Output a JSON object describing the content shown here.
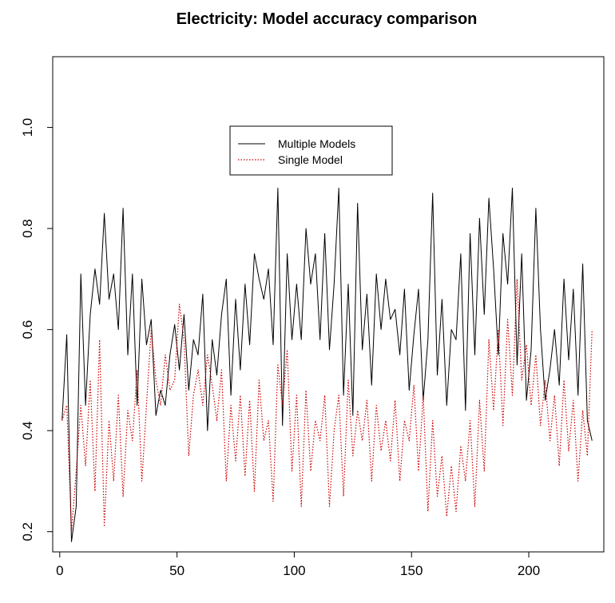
{
  "chart_data": {
    "type": "line",
    "title": "Electricity: Model accuracy comparison",
    "xlabel": "",
    "ylabel": "",
    "xlim": [
      -3,
      232
    ],
    "ylim": [
      0.16,
      1.14
    ],
    "x_ticks": [
      0,
      50,
      100,
      150,
      200
    ],
    "y_ticks": [
      0.2,
      0.4,
      0.6,
      0.8,
      1.0
    ],
    "y_tick_labels": [
      "0.2",
      "0.4",
      "0.6",
      "0.8",
      "1.0"
    ],
    "grid": false,
    "legend": {
      "position": "top-center"
    },
    "series": [
      {
        "name": "Multiple Models",
        "color": "#000000",
        "style": "solid",
        "x": [
          1,
          3,
          5,
          7,
          9,
          11,
          13,
          15,
          17,
          19,
          21,
          23,
          25,
          27,
          29,
          31,
          33,
          35,
          37,
          39,
          41,
          43,
          45,
          47,
          49,
          51,
          53,
          55,
          57,
          59,
          61,
          63,
          65,
          67,
          69,
          71,
          73,
          75,
          77,
          79,
          81,
          83,
          85,
          87,
          89,
          91,
          93,
          95,
          97,
          99,
          101,
          103,
          105,
          107,
          109,
          111,
          113,
          115,
          117,
          119,
          121,
          123,
          125,
          127,
          129,
          131,
          133,
          135,
          137,
          139,
          141,
          143,
          145,
          147,
          149,
          151,
          153,
          155,
          157,
          159,
          161,
          163,
          165,
          167,
          169,
          171,
          173,
          175,
          177,
          179,
          181,
          183,
          185,
          187,
          189,
          191,
          193,
          195,
          197,
          199,
          201,
          203,
          205,
          207,
          209,
          211,
          213,
          215,
          217,
          219,
          221,
          223,
          225,
          227
        ],
        "values": [
          0.42,
          0.59,
          0.18,
          0.25,
          0.71,
          0.45,
          0.63,
          0.72,
          0.65,
          0.83,
          0.66,
          0.71,
          0.6,
          0.84,
          0.55,
          0.71,
          0.45,
          0.7,
          0.57,
          0.62,
          0.43,
          0.48,
          0.45,
          0.55,
          0.61,
          0.52,
          0.63,
          0.48,
          0.58,
          0.55,
          0.67,
          0.4,
          0.58,
          0.51,
          0.63,
          0.7,
          0.47,
          0.66,
          0.52,
          0.69,
          0.57,
          0.75,
          0.7,
          0.66,
          0.72,
          0.57,
          0.88,
          0.41,
          0.75,
          0.58,
          0.69,
          0.58,
          0.8,
          0.69,
          0.75,
          0.58,
          0.79,
          0.56,
          0.69,
          0.88,
          0.47,
          0.69,
          0.43,
          0.85,
          0.56,
          0.67,
          0.49,
          0.71,
          0.6,
          0.7,
          0.62,
          0.64,
          0.55,
          0.68,
          0.48,
          0.59,
          0.68,
          0.46,
          0.58,
          0.87,
          0.51,
          0.66,
          0.45,
          0.6,
          0.58,
          0.75,
          0.44,
          0.79,
          0.55,
          0.82,
          0.63,
          0.86,
          0.72,
          0.55,
          0.79,
          0.69,
          0.88,
          0.53,
          0.75,
          0.46,
          0.56,
          0.84,
          0.6,
          0.46,
          0.52,
          0.6,
          0.49,
          0.7,
          0.54,
          0.68,
          0.47,
          0.73,
          0.42,
          0.38
        ],
        "note_values_ok": true
      },
      {
        "name": "Single Model",
        "color": "#cc0000",
        "style": "dotted",
        "x": [
          1,
          3,
          5,
          7,
          9,
          11,
          13,
          15,
          17,
          19,
          21,
          23,
          25,
          27,
          29,
          31,
          33,
          35,
          37,
          39,
          41,
          43,
          45,
          47,
          49,
          51,
          53,
          55,
          57,
          59,
          61,
          63,
          65,
          67,
          69,
          71,
          73,
          75,
          77,
          79,
          81,
          83,
          85,
          87,
          89,
          91,
          93,
          95,
          97,
          99,
          101,
          103,
          105,
          107,
          109,
          111,
          113,
          115,
          117,
          119,
          121,
          123,
          125,
          127,
          129,
          131,
          133,
          135,
          137,
          139,
          141,
          143,
          145,
          147,
          149,
          151,
          153,
          155,
          157,
          159,
          161,
          163,
          165,
          167,
          169,
          171,
          173,
          175,
          177,
          179,
          181,
          183,
          185,
          187,
          189,
          191,
          193,
          195,
          197,
          199,
          201,
          203,
          205,
          207,
          209,
          211,
          213,
          215,
          217,
          219,
          221,
          223,
          225,
          227
        ],
        "values": [
          0.42,
          0.45,
          0.2,
          0.32,
          0.45,
          0.33,
          0.5,
          0.28,
          0.58,
          0.21,
          0.42,
          0.3,
          0.47,
          0.27,
          0.44,
          0.38,
          0.52,
          0.3,
          0.45,
          0.6,
          0.5,
          0.45,
          0.55,
          0.48,
          0.5,
          0.65,
          0.58,
          0.35,
          0.47,
          0.52,
          0.45,
          0.55,
          0.49,
          0.42,
          0.52,
          0.3,
          0.45,
          0.34,
          0.47,
          0.31,
          0.46,
          0.28,
          0.5,
          0.38,
          0.42,
          0.26,
          0.53,
          0.45,
          0.56,
          0.32,
          0.47,
          0.25,
          0.48,
          0.32,
          0.42,
          0.38,
          0.47,
          0.25,
          0.4,
          0.47,
          0.27,
          0.5,
          0.35,
          0.44,
          0.38,
          0.46,
          0.3,
          0.45,
          0.36,
          0.42,
          0.34,
          0.46,
          0.3,
          0.42,
          0.38,
          0.49,
          0.32,
          0.47,
          0.24,
          0.42,
          0.27,
          0.35,
          0.23,
          0.33,
          0.24,
          0.37,
          0.3,
          0.42,
          0.25,
          0.46,
          0.32,
          0.58,
          0.44,
          0.6,
          0.41,
          0.62,
          0.47,
          0.7,
          0.5,
          0.57,
          0.45,
          0.55,
          0.41,
          0.5,
          0.38,
          0.47,
          0.33,
          0.5,
          0.36,
          0.46,
          0.3,
          0.44,
          0.35,
          0.6
        ]
      }
    ]
  }
}
